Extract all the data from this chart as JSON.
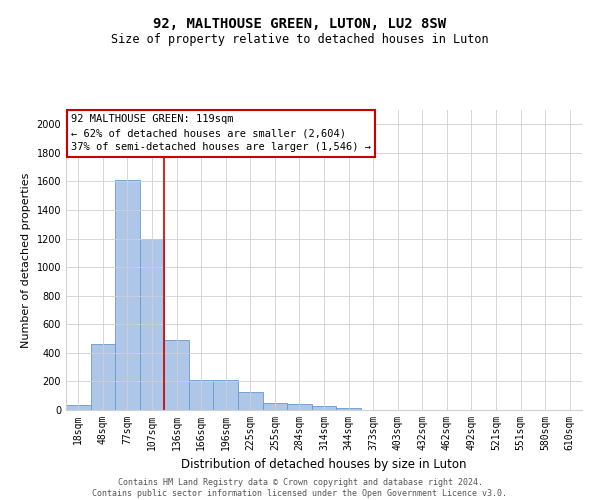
{
  "title": "92, MALTHOUSE GREEN, LUTON, LU2 8SW",
  "subtitle": "Size of property relative to detached houses in Luton",
  "xlabel": "Distribution of detached houses by size in Luton",
  "ylabel": "Number of detached properties",
  "footer_line1": "Contains HM Land Registry data © Crown copyright and database right 2024.",
  "footer_line2": "Contains public sector information licensed under the Open Government Licence v3.0.",
  "bar_labels": [
    "18sqm",
    "48sqm",
    "77sqm",
    "107sqm",
    "136sqm",
    "166sqm",
    "196sqm",
    "225sqm",
    "255sqm",
    "284sqm",
    "314sqm",
    "344sqm",
    "373sqm",
    "403sqm",
    "432sqm",
    "462sqm",
    "492sqm",
    "521sqm",
    "551sqm",
    "580sqm",
    "610sqm"
  ],
  "bar_values": [
    35,
    460,
    1610,
    1200,
    490,
    210,
    210,
    125,
    50,
    40,
    25,
    15,
    0,
    0,
    0,
    0,
    0,
    0,
    0,
    0,
    0
  ],
  "bar_color": "#aec6e8",
  "bar_edge_color": "#6699cc",
  "ylim": [
    0,
    2100
  ],
  "yticks": [
    0,
    200,
    400,
    600,
    800,
    1000,
    1200,
    1400,
    1600,
    1800,
    2000
  ],
  "annotation_box_text": "92 MALTHOUSE GREEN: 119sqm\n← 62% of detached houses are smaller (2,604)\n37% of semi-detached houses are larger (1,546) →",
  "vline_position": 3.5,
  "vline_color": "#cc0000",
  "annotation_box_edge_color": "#cc0000",
  "grid_color": "#d0d0d0",
  "bg_color": "#ffffff",
  "title_fontsize": 10,
  "subtitle_fontsize": 8.5,
  "ylabel_fontsize": 8,
  "xlabel_fontsize": 8.5,
  "tick_fontsize": 7,
  "annot_fontsize": 7.5,
  "footer_fontsize": 6
}
